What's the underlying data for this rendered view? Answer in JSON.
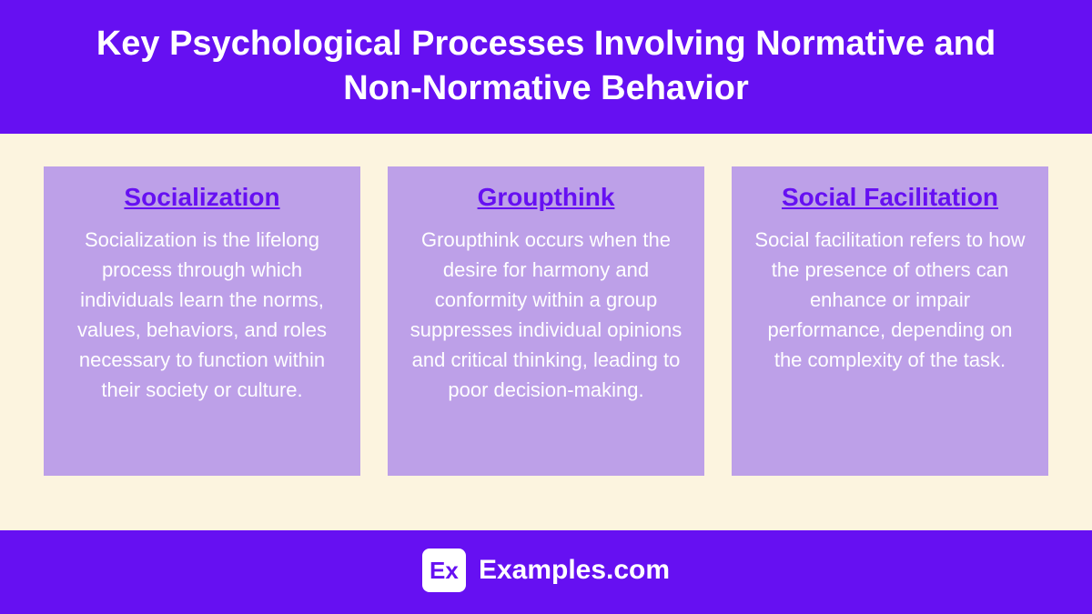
{
  "header": {
    "title": "Key Psychological Processes Involving Normative and Non-Normative Behavior"
  },
  "colors": {
    "primary": "#6610f2",
    "card_bg": "#bda0e8",
    "content_bg": "#fcf4df",
    "text_white": "#ffffff"
  },
  "cards": [
    {
      "title": "Socialization",
      "body": "Socialization is the lifelong process through which individuals learn the norms, values, behaviors, and roles necessary to function within their society or culture."
    },
    {
      "title": "Groupthink",
      "body": "Groupthink occurs when the desire for harmony and conformity within a group suppresses individual opinions and critical thinking, leading to poor decision-making."
    },
    {
      "title": "Social Facilitation",
      "body": "Social facilitation refers to how the presence of others can enhance or impair performance, depending on the complexity of the task."
    }
  ],
  "footer": {
    "logo_text": "Ex",
    "brand": "Examples.com"
  }
}
